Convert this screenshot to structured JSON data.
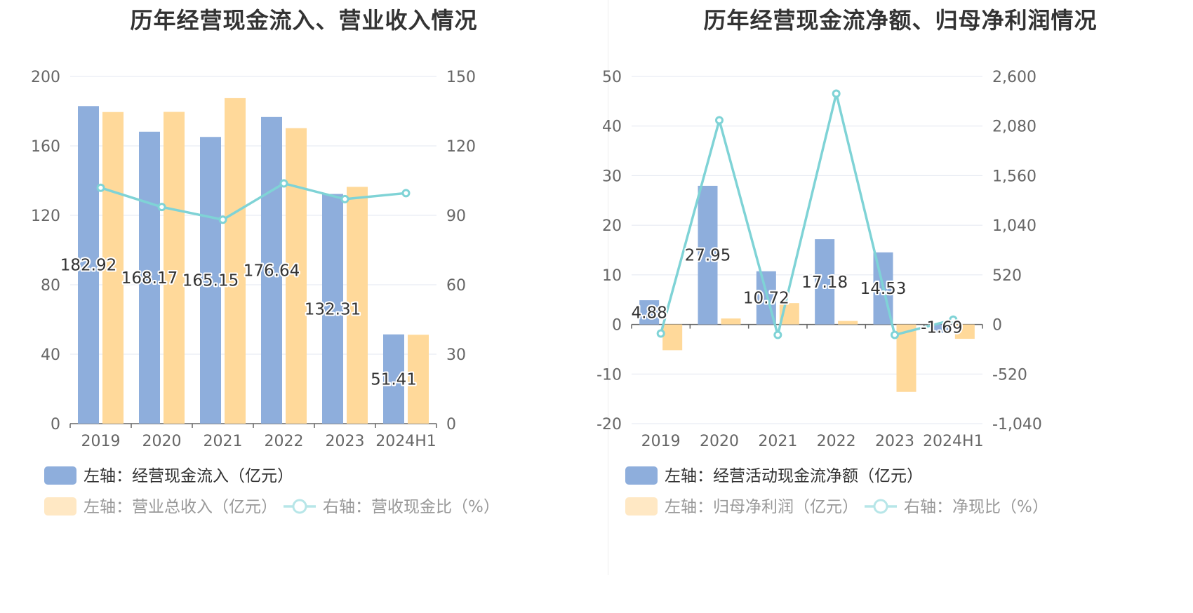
{
  "chart_data": [
    {
      "type": "bar",
      "title": "历年经营现金流入、营业收入情况",
      "categories": [
        "2019",
        "2020",
        "2021",
        "2022",
        "2023",
        "2024H1"
      ],
      "left_axis": {
        "ticks": [
          "0",
          "40",
          "80",
          "120",
          "160",
          "200"
        ],
        "ylim": [
          0,
          200
        ]
      },
      "right_axis": {
        "ticks": [
          "0",
          "30",
          "60",
          "90",
          "120",
          "150"
        ],
        "ylim": [
          0,
          150
        ]
      },
      "series": [
        {
          "name": "左轴：经营现金流入（亿元）",
          "type": "bar",
          "axis": "left",
          "color": "#8eaedc",
          "values": [
            182.92,
            168.17,
            165.15,
            176.64,
            132.31,
            51.41
          ],
          "labels": [
            "182.92",
            "168.17",
            "165.15",
            "176.64",
            "132.31",
            "51.41"
          ]
        },
        {
          "name": "左轴：营业总收入（亿元）",
          "type": "bar",
          "axis": "left",
          "color": "#ffd99a",
          "values": [
            179.5,
            179.6,
            187.5,
            170.2,
            136.4,
            51.2
          ]
        },
        {
          "name": "右轴：营收现金比（%）",
          "type": "line",
          "axis": "right",
          "color": "#7fd3d6",
          "values": [
            101.9,
            93.6,
            88.1,
            103.8,
            97.0,
            99.6
          ]
        }
      ],
      "grid": true
    },
    {
      "type": "bar",
      "title": "历年经营现金流净额、归母净利润情况",
      "categories": [
        "2019",
        "2020",
        "2021",
        "2022",
        "2023",
        "2024H1"
      ],
      "left_axis": {
        "ticks": [
          "-20",
          "-10",
          "0",
          "10",
          "20",
          "30",
          "40",
          "50"
        ],
        "ylim": [
          -20,
          50
        ]
      },
      "right_axis": {
        "ticks": [
          "-1,040",
          "-520",
          "0",
          "520",
          "1,040",
          "1,560",
          "2,080",
          "2,600"
        ],
        "ylim": [
          -1040,
          2600
        ]
      },
      "series": [
        {
          "name": "左轴：经营活动现金流净额（亿元）",
          "type": "bar",
          "axis": "left",
          "color": "#8eaedc",
          "values": [
            4.88,
            27.95,
            10.72,
            17.18,
            14.53,
            -1.69
          ],
          "labels": [
            "4.88",
            "27.95",
            "10.72",
            "17.18",
            "14.53",
            "-1.69"
          ]
        },
        {
          "name": "左轴：归母净利润（亿元）",
          "type": "bar",
          "axis": "left",
          "color": "#ffd99a",
          "values": [
            -5.2,
            1.2,
            4.3,
            0.7,
            -13.6,
            -2.9
          ]
        },
        {
          "name": "右轴：净现比（%）",
          "type": "line",
          "axis": "right",
          "color": "#7fd3d6",
          "values": [
            -95,
            2140,
            -110,
            2420,
            -110,
            50
          ]
        }
      ],
      "grid": true
    }
  ]
}
